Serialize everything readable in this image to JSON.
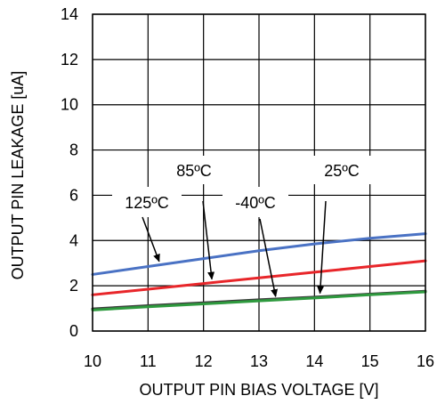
{
  "chart_data": {
    "type": "line",
    "title": "",
    "xlabel": "OUTPUT PIN BIAS VOLTAGE [V]",
    "ylabel": "OUTPUT PIN LEAKAGE [uA]",
    "xlim": [
      10,
      16
    ],
    "ylim": [
      0,
      14
    ],
    "xticks": [
      10,
      11,
      12,
      13,
      14,
      15,
      16
    ],
    "yticks": [
      0,
      2,
      4,
      6,
      8,
      10,
      12,
      14
    ],
    "grid": true,
    "legend": "none",
    "series": [
      {
        "name": "125ºC",
        "color": "#4a72c4",
        "x": [
          10,
          11,
          12,
          13,
          14,
          15,
          16
        ],
        "y": [
          2.5,
          2.85,
          3.2,
          3.55,
          3.85,
          4.1,
          4.3
        ]
      },
      {
        "name": "85ºC",
        "color": "#e8262a",
        "x": [
          10,
          11,
          12,
          13,
          14,
          15,
          16
        ],
        "y": [
          1.6,
          1.85,
          2.1,
          2.35,
          2.6,
          2.85,
          3.1
        ]
      },
      {
        "name": "25ºC",
        "color": "#3a3a3a",
        "x": [
          10,
          11,
          12,
          13,
          14,
          15,
          16
        ],
        "y": [
          0.98,
          1.12,
          1.25,
          1.38,
          1.5,
          1.63,
          1.76
        ]
      },
      {
        "name": "-40ºC",
        "color": "#2e9a3e",
        "x": [
          10,
          11,
          12,
          13,
          14,
          15,
          16
        ],
        "y": [
          0.93,
          1.07,
          1.2,
          1.33,
          1.46,
          1.6,
          1.73
        ]
      }
    ],
    "annotations": [
      {
        "text": "125ºC",
        "series": "125ºC"
      },
      {
        "text": "85ºC",
        "series": "85ºC"
      },
      {
        "text": "-40ºC",
        "series": "-40ºC"
      },
      {
        "text": "25ºC",
        "series": "25ºC"
      }
    ]
  }
}
